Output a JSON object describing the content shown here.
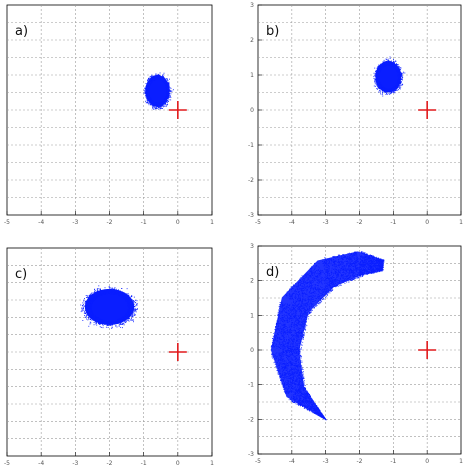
{
  "chart_data": [
    {
      "panel_label": "a)",
      "type": "scatter",
      "xlim": [
        -5,
        1
      ],
      "ylim": [
        -3,
        3
      ],
      "xticks": [
        "-5",
        "-4",
        "-3",
        "-2",
        "-1",
        "0",
        "1"
      ],
      "yticks": [],
      "grid": true,
      "clouds": [
        {
          "shape": "ellipse",
          "cx": -0.6,
          "cy": 0.55,
          "rx": 0.35,
          "ry": 0.45,
          "n": 1400
        }
      ],
      "marker": {
        "x": 0,
        "y": 0
      },
      "colors": {
        "points": "#0a1eff",
        "marker": "#e0191b"
      }
    },
    {
      "panel_label": "b)",
      "type": "scatter",
      "xlim": [
        -5,
        1
      ],
      "ylim": [
        -3,
        3
      ],
      "xticks": [
        "-5",
        "-4",
        "-3",
        "-2",
        "-1",
        "0",
        "1"
      ],
      "yticks": [
        "-3",
        "-2",
        "-1",
        "0",
        "1",
        "2",
        "3"
      ],
      "grid": true,
      "clouds": [
        {
          "shape": "ellipse",
          "cx": -1.15,
          "cy": 0.95,
          "rx": 0.38,
          "ry": 0.45,
          "n": 1400
        }
      ],
      "marker": {
        "x": 0,
        "y": 0
      },
      "colors": {
        "points": "#0a1eff",
        "marker": "#e0191b"
      }
    },
    {
      "panel_label": "c)",
      "type": "scatter",
      "xlim": [
        -5,
        1
      ],
      "ylim": [
        -3,
        3
      ],
      "xticks": [
        "-5",
        "-4",
        "-3",
        "-2",
        "-1",
        "0",
        "1"
      ],
      "yticks": [],
      "grid": true,
      "clouds": [
        {
          "shape": "ellipse",
          "cx": -2.0,
          "cy": 1.3,
          "rx": 0.72,
          "ry": 0.52,
          "n": 2000
        }
      ],
      "marker": {
        "x": 0,
        "y": 0
      },
      "colors": {
        "points": "#0a1eff",
        "marker": "#e0191b"
      }
    },
    {
      "panel_label": "d)",
      "type": "scatter",
      "xlim": [
        -5,
        1
      ],
      "ylim": [
        -3,
        3
      ],
      "xticks": [
        "-5",
        "-4",
        "-3",
        "-2",
        "-1",
        "0",
        "1"
      ],
      "yticks": [
        "-3",
        "-2",
        "-1",
        "0",
        "1",
        "2",
        "3"
      ],
      "grid": true,
      "clouds": [
        {
          "shape": "arc",
          "spine": [
            [
              -3.0,
              -2.0
            ],
            [
              -3.9,
              -1.2
            ],
            [
              -4.2,
              0.0
            ],
            [
              -3.9,
              1.3
            ],
            [
              -3.0,
              2.2
            ],
            [
              -2.0,
              2.5
            ],
            [
              -1.3,
              2.45
            ]
          ],
          "halfwidth": [
            0.0,
            0.3,
            0.42,
            0.45,
            0.45,
            0.35,
            0.15
          ],
          "n": 6000
        }
      ],
      "marker": {
        "x": 0,
        "y": 0
      },
      "colors": {
        "points": "#0a1eff",
        "marker": "#e0191b"
      }
    }
  ]
}
